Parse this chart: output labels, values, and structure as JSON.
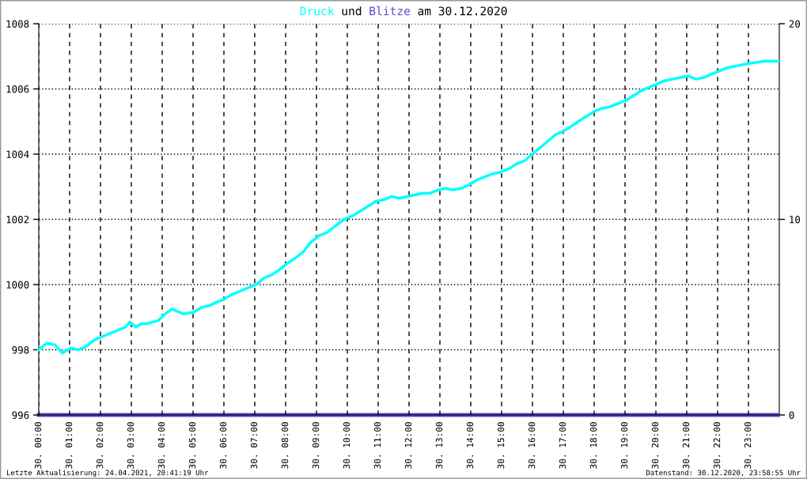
{
  "chart_data": {
    "type": "line",
    "title": "Druck und Blitze am 30.12.2020",
    "x": [
      "2020-12-30T00:00",
      "2020-12-30T00:15",
      "2020-12-30T00:31",
      "2020-12-30T00:46",
      "2020-12-30T01:02",
      "2020-12-30T01:17",
      "2020-12-30T01:32",
      "2020-12-30T01:48",
      "2020-12-30T02:03",
      "2020-12-30T02:18",
      "2020-12-30T02:34",
      "2020-12-30T02:49",
      "2020-12-30T02:57",
      "2020-12-30T03:09",
      "2020-12-30T03:20",
      "2020-12-30T03:31",
      "2020-12-30T03:42",
      "2020-12-30T03:53",
      "2020-12-30T04:02",
      "2020-12-30T04:19",
      "2020-12-30T04:41",
      "2020-12-30T05:01",
      "2020-12-30T05:16",
      "2020-12-30T05:31",
      "2020-12-30T05:45",
      "2020-12-30T06:00",
      "2020-12-30T06:16",
      "2020-12-30T06:32",
      "2020-12-30T06:47",
      "2020-12-30T07:03",
      "2020-12-30T07:18",
      "2020-12-30T07:33",
      "2020-12-30T07:48",
      "2020-12-30T08:03",
      "2020-12-30T08:18",
      "2020-12-30T08:34",
      "2020-12-30T08:49",
      "2020-12-30T09:05",
      "2020-12-30T09:21",
      "2020-12-30T09:37",
      "2020-12-30T09:54",
      "2020-12-30T10:09",
      "2020-12-30T10:25",
      "2020-12-30T10:40",
      "2020-12-30T10:55",
      "2020-12-30T11:11",
      "2020-12-30T11:26",
      "2020-12-30T11:42",
      "2020-12-30T11:57",
      "2020-12-30T12:12",
      "2020-12-30T12:26",
      "2020-12-30T12:41",
      "2020-12-30T12:56",
      "2020-12-30T13:11",
      "2020-12-30T13:26",
      "2020-12-30T13:41",
      "2020-12-30T13:56",
      "2020-12-30T14:11",
      "2020-12-30T14:27",
      "2020-12-30T14:43",
      "2020-12-30T14:58",
      "2020-12-30T15:14",
      "2020-12-30T15:29",
      "2020-12-30T15:45",
      "2020-12-30T16:00",
      "2020-12-30T16:15",
      "2020-12-30T16:30",
      "2020-12-30T16:45",
      "2020-12-30T17:00",
      "2020-12-30T17:15",
      "2020-12-30T17:29",
      "2020-12-30T17:44",
      "2020-12-30T17:59",
      "2020-12-30T18:14",
      "2020-12-30T18:30",
      "2020-12-30T18:46",
      "2020-12-30T19:02",
      "2020-12-30T19:17",
      "2020-12-30T19:32",
      "2020-12-30T19:47",
      "2020-12-30T20:02",
      "2020-12-30T20:17",
      "2020-12-30T20:32",
      "2020-12-30T20:48",
      "2020-12-30T21:03",
      "2020-12-30T21:18",
      "2020-12-30T21:33",
      "2020-12-30T21:48",
      "2020-12-30T22:03",
      "2020-12-30T22:19",
      "2020-12-30T22:35",
      "2020-12-30T22:51",
      "2020-12-30T23:09",
      "2020-12-30T23:31",
      "2020-12-30T23:58"
    ],
    "xlim": [
      "2020-12-30T00:00",
      "2020-12-31T00:00"
    ],
    "xticks": [
      {
        "value": "2020-12-30T00:00",
        "label": "30. 00:00"
      },
      {
        "value": "2020-12-30T01:00",
        "label": "30. 01:00"
      },
      {
        "value": "2020-12-30T02:00",
        "label": "30. 02:00"
      },
      {
        "value": "2020-12-30T03:00",
        "label": "30. 03:00"
      },
      {
        "value": "2020-12-30T04:00",
        "label": "30. 04:00"
      },
      {
        "value": "2020-12-30T05:00",
        "label": "30. 05:00"
      },
      {
        "value": "2020-12-30T06:00",
        "label": "30. 06:00"
      },
      {
        "value": "2020-12-30T07:00",
        "label": "30. 07:00"
      },
      {
        "value": "2020-12-30T08:00",
        "label": "30. 08:00"
      },
      {
        "value": "2020-12-30T09:00",
        "label": "30. 09:00"
      },
      {
        "value": "2020-12-30T10:00",
        "label": "30. 10:00"
      },
      {
        "value": "2020-12-30T11:00",
        "label": "30. 11:00"
      },
      {
        "value": "2020-12-30T12:00",
        "label": "30. 12:00"
      },
      {
        "value": "2020-12-30T13:00",
        "label": "30. 13:00"
      },
      {
        "value": "2020-12-30T14:00",
        "label": "30. 14:00"
      },
      {
        "value": "2020-12-30T15:00",
        "label": "30. 15:00"
      },
      {
        "value": "2020-12-30T16:00",
        "label": "30. 16:00"
      },
      {
        "value": "2020-12-30T17:00",
        "label": "30. 17:00"
      },
      {
        "value": "2020-12-30T18:00",
        "label": "30. 18:00"
      },
      {
        "value": "2020-12-30T19:00",
        "label": "30. 19:00"
      },
      {
        "value": "2020-12-30T20:00",
        "label": "30. 20:00"
      },
      {
        "value": "2020-12-30T21:00",
        "label": "30. 21:00"
      },
      {
        "value": "2020-12-30T22:00",
        "label": "30. 22:00"
      },
      {
        "value": "2020-12-30T23:00",
        "label": "30. 23:00"
      }
    ],
    "ylim": [
      996,
      1008
    ],
    "yticks": [
      996,
      998,
      1000,
      1002,
      1004,
      1006,
      1008
    ],
    "y2lim": [
      0,
      20
    ],
    "y2ticks": [
      0,
      10,
      20
    ],
    "series": [
      {
        "color": "#00ffff",
        "values": [
          998.0,
          998.2,
          998.15,
          997.9,
          998.05,
          998.0,
          998.1,
          998.3,
          998.4,
          998.5,
          998.6,
          998.7,
          998.85,
          998.7,
          998.8,
          998.8,
          998.85,
          998.9,
          999.05,
          999.25,
          999.1,
          999.15,
          999.3,
          999.35,
          999.45,
          999.55,
          999.7,
          999.8,
          999.9,
          1000.0,
          1000.2,
          1000.3,
          1000.45,
          1000.65,
          1000.8,
          1001.0,
          1001.3,
          1001.5,
          1001.6,
          1001.8,
          1002.0,
          1002.1,
          1002.25,
          1002.4,
          1002.55,
          1002.6,
          1002.7,
          1002.65,
          1002.7,
          1002.75,
          1002.8,
          1002.8,
          1002.9,
          1002.95,
          1002.9,
          1002.95,
          1003.05,
          1003.2,
          1003.3,
          1003.4,
          1003.45,
          1003.55,
          1003.7,
          1003.8,
          1004.0,
          1004.2,
          1004.4,
          1004.6,
          1004.7,
          1004.85,
          1005.0,
          1005.15,
          1005.3,
          1005.4,
          1005.45,
          1005.55,
          1005.65,
          1005.8,
          1005.95,
          1006.05,
          1006.15,
          1006.25,
          1006.3,
          1006.35,
          1006.4,
          1006.3,
          1006.35,
          1006.45,
          1006.55,
          1006.65,
          1006.7,
          1006.75,
          1006.8,
          1006.85,
          1006.85
        ]
      },
      {
        "color": "#5b4fd0",
        "axis": "y2",
        "x": [
          "2020-12-30T00:00",
          "2020-12-30T23:58"
        ],
        "values": [
          0,
          0
        ]
      }
    ],
    "grid": true,
    "legend": false,
    "marker": "none",
    "line_style": "solid",
    "annotations": [
      "Letzte Aktualisierung: 24.04.2021, 20:41:19 Uhr",
      "Datenstand: 30.12.2020, 23:58:55 Uhr"
    ]
  }
}
